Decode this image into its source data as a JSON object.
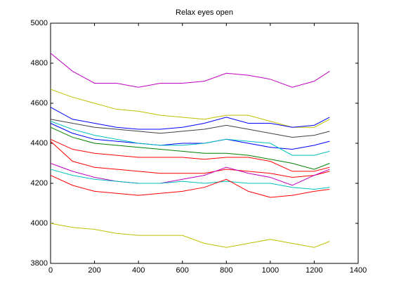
{
  "chart_data": {
    "type": "line",
    "title": "Relax eyes open",
    "x": [
      0,
      100,
      200,
      300,
      400,
      500,
      600,
      700,
      800,
      900,
      1000,
      1100,
      1200,
      1270
    ],
    "xlim": [
      0,
      1400
    ],
    "xticks": [
      0,
      200,
      400,
      600,
      800,
      1000,
      1200,
      1400
    ],
    "ylim": [
      3800,
      5000
    ],
    "yticks": [
      3800,
      4000,
      4200,
      4400,
      4600,
      4800,
      5000
    ],
    "grid": false,
    "series": [
      {
        "color": "#bf00bf",
        "values": [
          4850,
          4760,
          4700,
          4700,
          4680,
          4700,
          4700,
          4710,
          4750,
          4740,
          4720,
          4680,
          4710,
          4760
        ]
      },
      {
        "color": "#bfbf00",
        "values": [
          4670,
          4630,
          4600,
          4570,
          4560,
          4540,
          4530,
          4520,
          4540,
          4540,
          4510,
          4480,
          4480,
          4520
        ]
      },
      {
        "color": "#0000ff",
        "values": [
          4580,
          4520,
          4500,
          4480,
          4470,
          4470,
          4480,
          4500,
          4530,
          4500,
          4500,
          4480,
          4490,
          4530
        ]
      },
      {
        "color": "#404040",
        "values": [
          4520,
          4500,
          4480,
          4470,
          4460,
          4450,
          4460,
          4470,
          4490,
          4470,
          4450,
          4430,
          4440,
          4460
        ]
      },
      {
        "color": "#0000ff",
        "values": [
          4500,
          4450,
          4420,
          4410,
          4400,
          4390,
          4400,
          4400,
          4420,
          4400,
          4380,
          4370,
          4390,
          4410
        ]
      },
      {
        "color": "#00bfbf",
        "values": [
          4510,
          4470,
          4440,
          4420,
          4400,
          4390,
          4390,
          4400,
          4420,
          4410,
          4400,
          4340,
          4340,
          4360
        ]
      },
      {
        "color": "#008000",
        "values": [
          4480,
          4430,
          4400,
          4390,
          4380,
          4370,
          4360,
          4350,
          4350,
          4340,
          4320,
          4300,
          4270,
          4300
        ]
      },
      {
        "color": "#ff0000",
        "values": [
          4420,
          4370,
          4350,
          4340,
          4330,
          4330,
          4330,
          4320,
          4330,
          4330,
          4310,
          4260,
          4260,
          4280
        ]
      },
      {
        "color": "#ff0000",
        "values": [
          4410,
          4310,
          4280,
          4270,
          4260,
          4250,
          4250,
          4250,
          4270,
          4260,
          4250,
          4230,
          4240,
          4260
        ]
      },
      {
        "color": "#bf00bf",
        "values": [
          4300,
          4260,
          4230,
          4210,
          4200,
          4200,
          4220,
          4240,
          4280,
          4250,
          4230,
          4190,
          4240,
          4270
        ]
      },
      {
        "color": "#00bfbf",
        "values": [
          4270,
          4240,
          4220,
          4210,
          4200,
          4200,
          4210,
          4200,
          4210,
          4200,
          4200,
          4180,
          4170,
          4180
        ]
      },
      {
        "color": "#ff0000",
        "values": [
          4240,
          4190,
          4160,
          4150,
          4140,
          4150,
          4160,
          4180,
          4220,
          4160,
          4130,
          4140,
          4160,
          4170
        ]
      },
      {
        "color": "#bfbf00",
        "values": [
          4000,
          3980,
          3970,
          3950,
          3940,
          3940,
          3940,
          3900,
          3880,
          3900,
          3920,
          3900,
          3880,
          3910
        ]
      }
    ]
  }
}
